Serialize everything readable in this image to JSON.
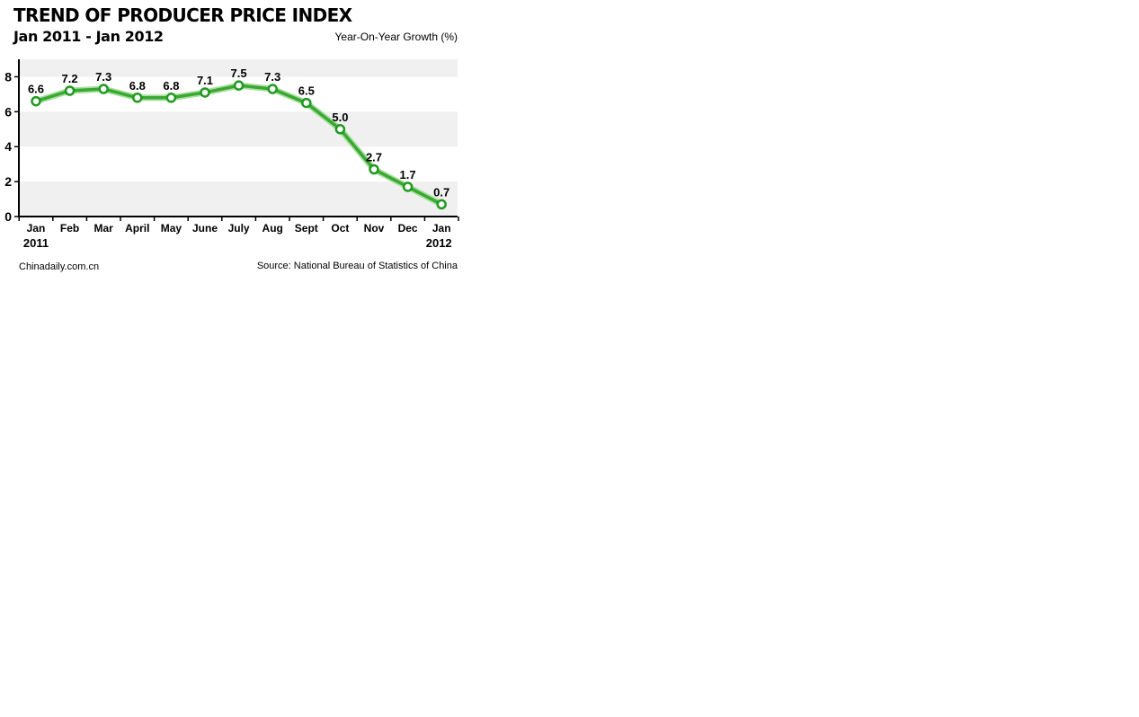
{
  "header": {
    "title": "TREND OF PRODUCER PRICE INDEX",
    "subtitle": "Jan 2011 - Jan 2012",
    "unit_label": "Year-On-Year Growth (%)"
  },
  "footer": {
    "credit": "Chinadaily.com.cn",
    "source": "Source: National Bureau of Statistics of China"
  },
  "chart_data": {
    "type": "line",
    "title": "TREND OF PRODUCER PRICE INDEX",
    "subtitle": "Jan 2011 - Jan 2012",
    "ylabel": "Year-On-Year Growth (%)",
    "categories": [
      "Jan",
      "Feb",
      "Mar",
      "April",
      "May",
      "June",
      "July",
      "Aug",
      "Sept",
      "Oct",
      "Nov",
      "Dec",
      "Jan"
    ],
    "year_labels": [
      "2011",
      "",
      "",
      "",
      "",
      "",
      "",
      "",
      "",
      "",
      "",
      "",
      "2012"
    ],
    "values": [
      6.6,
      7.2,
      7.3,
      6.8,
      6.8,
      7.1,
      7.5,
      7.3,
      6.5,
      5.0,
      2.7,
      1.7,
      0.7
    ],
    "value_labels": [
      "6.6",
      "7.2",
      "7.3",
      "6.8",
      "6.8",
      "7.1",
      "7.5",
      "7.3",
      "6.5",
      "5.0",
      "2.7",
      "1.7",
      "0.7"
    ],
    "yticks": [
      0,
      2,
      4,
      6,
      8
    ],
    "ylim": [
      0,
      9
    ],
    "grid": "alternating horizontal bands",
    "colors": {
      "line": "#3aa832",
      "line_glow": "#a6df9d",
      "marker_stroke": "#1f9a1f",
      "marker_fill": "#ffffff",
      "band": "#f0f0f0",
      "axis": "#000000"
    }
  }
}
